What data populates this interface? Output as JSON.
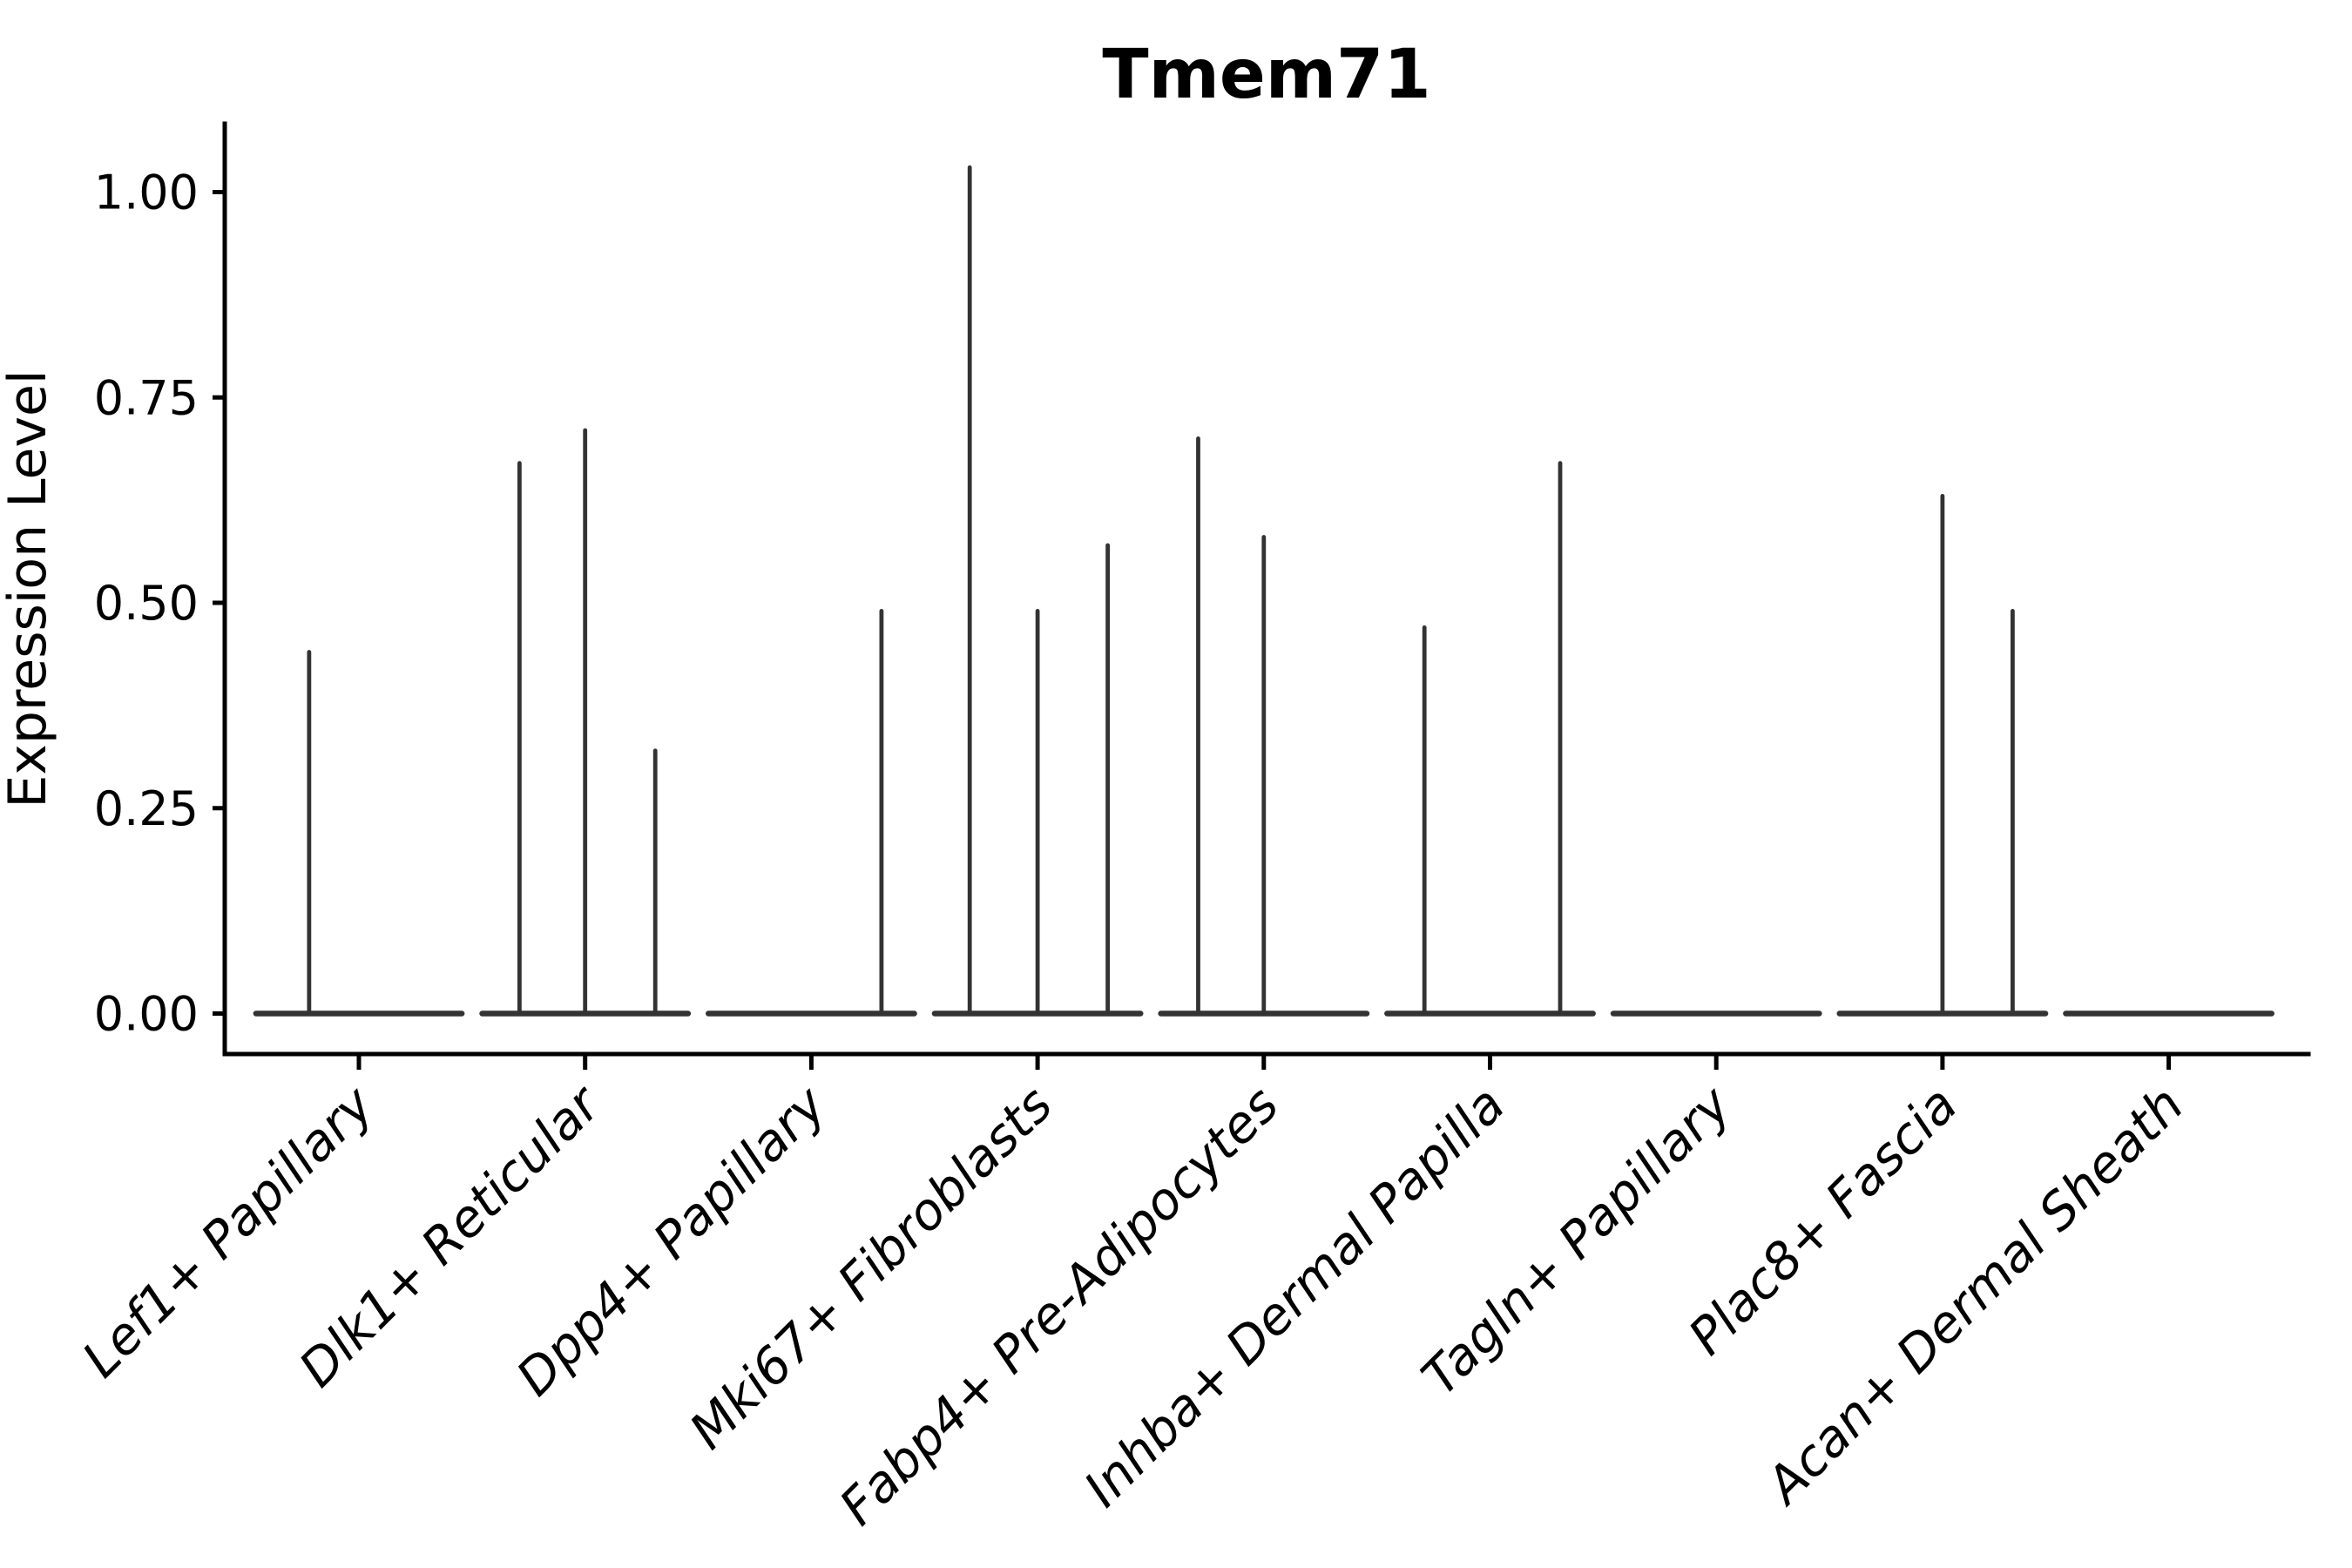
{
  "title": "Tmem71",
  "y_axis": {
    "label": "Expression Level",
    "tick_labels": [
      "0.00",
      "0.25",
      "0.50",
      "0.75",
      "1.00"
    ],
    "tick_values": [
      0.0,
      0.25,
      0.5,
      0.75,
      1.0
    ]
  },
  "x_axis": {
    "categories": [
      "Lef1+ Papillary",
      "Dlk1+ Reticular",
      "Dpp4+ Papillary",
      "Mki67+ Fibroblasts",
      "Fabp4+ Pre-Adipocytes",
      "Inhba+ Dermal Papilla",
      "Tagln+ Papillary",
      "Plac8+ Fascia",
      "Acan+ Dermal Sheath"
    ]
  },
  "colors": {
    "violin": "#333333",
    "axis": "#000000",
    "text": "#000000",
    "background": "#ffffff"
  },
  "chart_data": {
    "type": "violin",
    "title": "Tmem71",
    "xlabel": "",
    "ylabel": "Expression Level",
    "ylim": [
      -0.05,
      1.08
    ],
    "grid": false,
    "legend": "none",
    "description": "Sparse single-cell expression violin plot: each category shows a flat collapsed violin base at 0 with thin vertical density spikes reaching the maximum expression values.",
    "categories": [
      "Lef1+ Papillary",
      "Dlk1+ Reticular",
      "Dpp4+ Papillary",
      "Mki67+ Fibroblasts",
      "Fabp4+ Pre-Adipocytes",
      "Inhba+ Dermal Papilla",
      "Tagln+ Papillary",
      "Plac8+ Fascia",
      "Acan+ Dermal Sheath"
    ],
    "baseline_value": 0.0,
    "baseline_halfwidth": 0.455,
    "violins": [
      {
        "category": "Lef1+ Papillary",
        "spikes": [
          {
            "offset": -0.22,
            "max": 0.44
          }
        ]
      },
      {
        "category": "Dlk1+ Reticular",
        "spikes": [
          {
            "offset": -0.29,
            "max": 0.67
          },
          {
            "offset": 0.0,
            "max": 0.71
          },
          {
            "offset": 0.31,
            "max": 0.32
          }
        ]
      },
      {
        "category": "Dpp4+ Papillary",
        "spikes": [
          {
            "offset": 0.31,
            "max": 0.49
          }
        ]
      },
      {
        "category": "Mki67+ Fibroblasts",
        "spikes": [
          {
            "offset": -0.3,
            "max": 1.03
          },
          {
            "offset": 0.0,
            "max": 0.49
          },
          {
            "offset": 0.31,
            "max": 0.57
          }
        ]
      },
      {
        "category": "Fabp4+ Pre-Adipocytes",
        "spikes": [
          {
            "offset": -0.29,
            "max": 0.7
          },
          {
            "offset": 0.0,
            "max": 0.58
          }
        ]
      },
      {
        "category": "Inhba+ Dermal Papilla",
        "spikes": [
          {
            "offset": -0.29,
            "max": 0.47
          },
          {
            "offset": 0.31,
            "max": 0.67
          }
        ]
      },
      {
        "category": "Tagln+ Papillary",
        "spikes": []
      },
      {
        "category": "Plac8+ Fascia",
        "spikes": [
          {
            "offset": 0.0,
            "max": 0.63
          },
          {
            "offset": 0.31,
            "max": 0.49
          }
        ]
      },
      {
        "category": "Acan+ Dermal Sheath",
        "spikes": []
      }
    ]
  }
}
